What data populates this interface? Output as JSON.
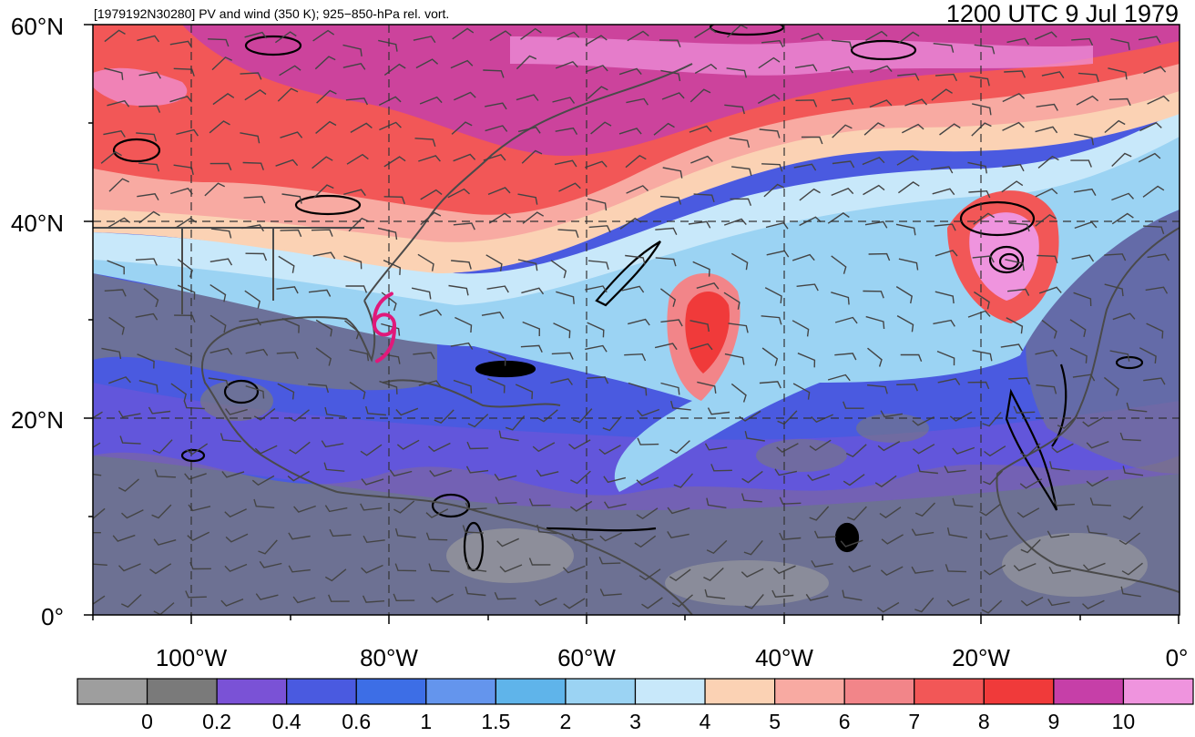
{
  "header": {
    "left_title": "[1979192N30280] PV and wind (350 K); 925−850-hPa rel. vort.",
    "right_title": "1200 UTC 9 Jul 1979"
  },
  "map": {
    "lat_labels": [
      "60°N",
      "40°N",
      "20°N",
      "0°"
    ],
    "lon_labels": [
      "100°W",
      "80°W",
      "60°W",
      "40°W",
      "20°W",
      "0°"
    ],
    "lat_range": [
      0,
      60
    ],
    "lon_range": [
      -110,
      0
    ],
    "gridlines": true,
    "storm_symbol": {
      "name": "tropical-cyclone-symbol",
      "lon": -80.5,
      "lat": 29.5,
      "color": "#e0197a"
    }
  },
  "colorbar": {
    "tick_labels": [
      "0",
      "0.2",
      "0.4",
      "0.6",
      "1",
      "1.5",
      "2",
      "3",
      "4",
      "5",
      "6",
      "7",
      "8",
      "9",
      "10"
    ],
    "colors": [
      "#9e9e9e",
      "#7a7a7a",
      "#7a52d6",
      "#4a5ae0",
      "#3d6ee6",
      "#6495ed",
      "#5fb4ea",
      "#9bd3f3",
      "#c8e8fa",
      "#fbd2b4",
      "#f8aaa2",
      "#f28589",
      "#f25757",
      "#f03a3a",
      "#c63fa8",
      "#ef94de"
    ]
  }
}
